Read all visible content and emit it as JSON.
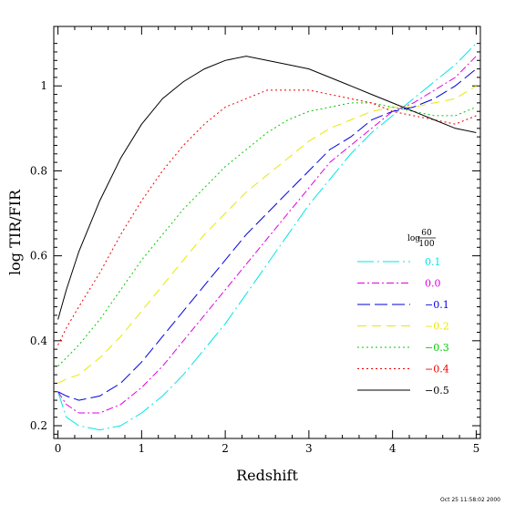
{
  "chart_data": {
    "type": "line",
    "xlabel": "Redshift",
    "ylabel": "log TIR/FIR",
    "xlim": [
      -0.05,
      5.05
    ],
    "ylim": [
      0.17,
      1.14
    ],
    "xticks": [
      "0",
      "1",
      "2",
      "3",
      "4",
      "5"
    ],
    "yticks": [
      "0.2",
      "0.4",
      "0.6",
      "0.8",
      "1"
    ],
    "ytick_values": [
      0.2,
      0.4,
      0.6,
      0.8,
      1.0
    ],
    "xtick_values": [
      0,
      1,
      2,
      3,
      4,
      5
    ],
    "legend_title": {
      "prefix": "log",
      "numerator": "60",
      "denominator": "100"
    },
    "legend_position": "right",
    "timestamp": "Oct 25 11:58:02 2000",
    "series": [
      {
        "name": "0.1",
        "color": "#00e5e5",
        "dash": "18,4,2,4",
        "x": [
          0,
          0.1,
          0.25,
          0.5,
          0.75,
          1.0,
          1.25,
          1.5,
          1.75,
          2.0,
          2.25,
          2.5,
          2.75,
          3.0,
          3.25,
          3.5,
          3.75,
          4.0,
          4.25,
          4.5,
          4.75,
          5.0
        ],
        "y": [
          0.28,
          0.22,
          0.2,
          0.19,
          0.2,
          0.23,
          0.27,
          0.32,
          0.38,
          0.44,
          0.51,
          0.58,
          0.65,
          0.72,
          0.78,
          0.84,
          0.89,
          0.93,
          0.97,
          1.01,
          1.05,
          1.1
        ]
      },
      {
        "name": "0.0",
        "color": "#e000e0",
        "dash": "8,3,2,3",
        "x": [
          0,
          0.1,
          0.25,
          0.5,
          0.75,
          1.0,
          1.25,
          1.5,
          1.75,
          2.0,
          2.25,
          2.5,
          2.75,
          3.0,
          3.25,
          3.5,
          3.75,
          4.0,
          4.25,
          4.5,
          4.75,
          5.0
        ],
        "y": [
          0.28,
          0.25,
          0.23,
          0.23,
          0.25,
          0.29,
          0.34,
          0.4,
          0.46,
          0.52,
          0.58,
          0.64,
          0.7,
          0.76,
          0.82,
          0.86,
          0.9,
          0.94,
          0.96,
          0.99,
          1.02,
          1.07
        ]
      },
      {
        "name": "−0.1",
        "color": "#0000e0",
        "dash": "14,5",
        "x": [
          0,
          0.1,
          0.25,
          0.5,
          0.75,
          1.0,
          1.25,
          1.5,
          1.75,
          2.0,
          2.25,
          2.5,
          2.75,
          3.0,
          3.25,
          3.5,
          3.75,
          4.0,
          4.25,
          4.5,
          4.75,
          5.0
        ],
        "y": [
          0.28,
          0.27,
          0.26,
          0.27,
          0.3,
          0.35,
          0.41,
          0.47,
          0.53,
          0.59,
          0.65,
          0.7,
          0.75,
          0.8,
          0.85,
          0.88,
          0.92,
          0.94,
          0.95,
          0.97,
          1.0,
          1.04
        ]
      },
      {
        "name": "−0.2",
        "color": "#e8e800",
        "dash": "10,6",
        "x": [
          0,
          0.1,
          0.25,
          0.5,
          0.75,
          1.0,
          1.25,
          1.5,
          1.75,
          2.0,
          2.25,
          2.5,
          2.75,
          3.0,
          3.25,
          3.5,
          3.75,
          4.0,
          4.25,
          4.5,
          4.75,
          5.0
        ],
        "y": [
          0.3,
          0.31,
          0.32,
          0.36,
          0.41,
          0.47,
          0.53,
          0.59,
          0.65,
          0.7,
          0.75,
          0.79,
          0.83,
          0.87,
          0.9,
          0.92,
          0.94,
          0.95,
          0.95,
          0.96,
          0.97,
          1.0
        ]
      },
      {
        "name": "−0.3",
        "color": "#00cc00",
        "dash": "2,3",
        "x": [
          0,
          0.1,
          0.25,
          0.5,
          0.75,
          1.0,
          1.25,
          1.5,
          1.75,
          2.0,
          2.25,
          2.5,
          2.75,
          3.0,
          3.25,
          3.5,
          3.75,
          4.0,
          4.25,
          4.5,
          4.75,
          5.0
        ],
        "y": [
          0.34,
          0.36,
          0.39,
          0.45,
          0.52,
          0.59,
          0.65,
          0.71,
          0.76,
          0.81,
          0.85,
          0.89,
          0.92,
          0.94,
          0.95,
          0.96,
          0.96,
          0.95,
          0.94,
          0.93,
          0.93,
          0.95
        ]
      },
      {
        "name": "−0.4",
        "color": "#ee0000",
        "dash": "2,3",
        "x": [
          0,
          0.1,
          0.25,
          0.5,
          0.75,
          1.0,
          1.25,
          1.5,
          1.75,
          2.0,
          2.25,
          2.5,
          2.75,
          3.0,
          3.25,
          3.5,
          3.75,
          4.0,
          4.25,
          4.5,
          4.75,
          5.0
        ],
        "y": [
          0.39,
          0.43,
          0.48,
          0.56,
          0.65,
          0.73,
          0.8,
          0.86,
          0.91,
          0.95,
          0.97,
          0.99,
          0.99,
          0.99,
          0.98,
          0.97,
          0.96,
          0.94,
          0.93,
          0.92,
          0.91,
          0.93
        ]
      },
      {
        "name": "−0.5",
        "color": "#000000",
        "dash": "",
        "x": [
          0,
          0.1,
          0.25,
          0.5,
          0.75,
          1.0,
          1.25,
          1.5,
          1.75,
          2.0,
          2.25,
          2.5,
          2.75,
          3.0,
          3.25,
          3.5,
          3.75,
          4.0,
          4.25,
          4.5,
          4.75,
          5.0
        ],
        "y": [
          0.45,
          0.52,
          0.61,
          0.73,
          0.83,
          0.91,
          0.97,
          1.01,
          1.04,
          1.06,
          1.07,
          1.06,
          1.05,
          1.04,
          1.02,
          1.0,
          0.98,
          0.96,
          0.94,
          0.92,
          0.9,
          0.89
        ]
      }
    ]
  }
}
